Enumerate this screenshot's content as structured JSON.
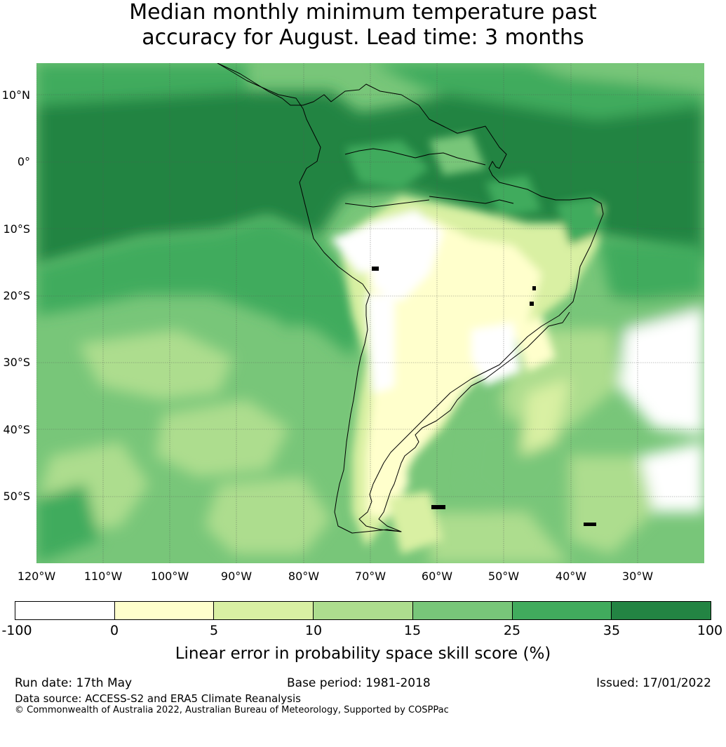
{
  "title_line1": "Median monthly minimum temperature past",
  "title_line2": "accuracy for August. Lead time: 3 months",
  "map": {
    "lat_labels": [
      "10°N",
      "0°",
      "10°S",
      "20°S",
      "30°S",
      "40°S",
      "50°S"
    ],
    "lon_labels": [
      "120°W",
      "110°W",
      "100°W",
      "90°W",
      "80°W",
      "70°W",
      "60°W",
      "50°W",
      "40°W",
      "30°W"
    ],
    "colors": {
      "ocean_base": "#43a35a",
      "dark_green": "#238443",
      "mid_green": "#41ab5d",
      "green": "#78c679",
      "light_green": "#addd8e",
      "pale_green": "#d9f0a3",
      "cream": "#ffffcc",
      "white": "#ffffff"
    }
  },
  "colorbar": {
    "ticks": [
      "-100",
      "0",
      "5",
      "10",
      "15",
      "25",
      "35",
      "100"
    ],
    "colors": [
      "#ffffff",
      "#ffffcc",
      "#d9f0a3",
      "#addd8e",
      "#78c679",
      "#41ab5d",
      "#238443"
    ],
    "label": "Linear error in probability space skill score (%)"
  },
  "footer": {
    "run_date": "Run date: 17th May",
    "base_period": "Base period: 1981-2018",
    "issued": "Issued: 17/01/2022",
    "data_source": "Data source: ACCESS-S2 and ERA5 Climate Reanalysis",
    "copyright": "© Commonwealth of Australia 2022, Australian Bureau of Meteorology, Supported by COSPPac"
  }
}
